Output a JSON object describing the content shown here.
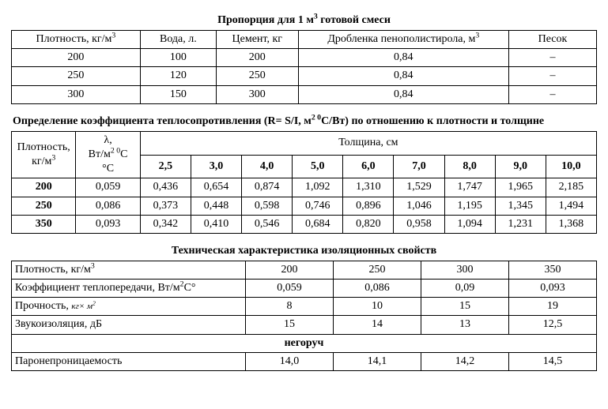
{
  "table1": {
    "title_prefix": "Пропорция для 1 м",
    "title_sup": "3",
    "title_suffix": " готовой смеси",
    "headers": {
      "density_prefix": "Плотность, кг/м",
      "density_sup": "3",
      "water": "Вода, л.",
      "cement": "Цемент, кг",
      "crumb_prefix": "Дробленка пенополистирола, м",
      "crumb_sup": "3",
      "sand": "Песок"
    },
    "rows": [
      {
        "density": "200",
        "water": "100",
        "cement": "200",
        "crumb": "0,84",
        "sand": "–"
      },
      {
        "density": "250",
        "water": "120",
        "cement": "250",
        "crumb": "0,84",
        "sand": "–"
      },
      {
        "density": "300",
        "water": "150",
        "cement": "300",
        "crumb": "0,84",
        "sand": "–"
      }
    ],
    "col_widths": [
      "22%",
      "13%",
      "14%",
      "36%",
      "15%"
    ]
  },
  "table2": {
    "title_prefix": "Определение коэффициента теплосопротивления (R= S/I, м",
    "title_mid_sup1": "2 0",
    "title_mid": "C/Вт) по отношению к плотности и толщине",
    "headers": {
      "density_prefix": "Плотность,",
      "density_line2_prefix": "кг/м",
      "density_sup": "3",
      "lambda_sym": "λ,",
      "lambda_line2_prefix": "Вт/м",
      "lambda_sup1": "2 0",
      "lambda_line2_suffix": "C",
      "lambda_line3": "°C",
      "thickness": "Толщина, см",
      "th_cols": [
        "2,5",
        "3,0",
        "4,0",
        "5,0",
        "6,0",
        "7,0",
        "8,0",
        "9,0",
        "10,0"
      ]
    },
    "rows": [
      {
        "density": "200",
        "lambda": "0,059",
        "vals": [
          "0,436",
          "0,654",
          "0,874",
          "1,092",
          "1,310",
          "1,529",
          "1,747",
          "1,965",
          "2,185"
        ]
      },
      {
        "density": "250",
        "lambda": "0,086",
        "vals": [
          "0,373",
          "0,448",
          "0,598",
          "0,746",
          "0,896",
          "1,046",
          "1,195",
          "1,345",
          "1,494"
        ]
      },
      {
        "density": "350",
        "lambda": "0,093",
        "vals": [
          "0,342",
          "0,410",
          "0,546",
          "0,684",
          "0,820",
          "0,958",
          "1,094",
          "1,231",
          "1,368"
        ]
      }
    ],
    "col_widths": [
      "11%",
      "11%",
      "8.67%",
      "8.67%",
      "8.67%",
      "8.67%",
      "8.67%",
      "8.67%",
      "8.67%",
      "8.67%",
      "8.67%"
    ]
  },
  "table3": {
    "title": "Техническая характеристика изоляционных свойств",
    "rows": {
      "density": {
        "label_prefix": "Плотность, кг/м",
        "label_sup": "3",
        "vals": [
          "200",
          "250",
          "300",
          "350"
        ]
      },
      "coef": {
        "label_prefix": "Коэффициент теплопередачи, Вт/м",
        "label_sup": "2",
        "label_suffix": "C°",
        "vals": [
          "0,059",
          "0,086",
          "0,09",
          "0,093"
        ]
      },
      "strength": {
        "label_prefix": "Прочность, ",
        "label_unit": "кг× м",
        "label_unit_sup": "2",
        "vals": [
          "8",
          "10",
          "15",
          "19"
        ]
      },
      "sound": {
        "label": "Звукоизоляция, дБ",
        "vals": [
          "15",
          "14",
          "13",
          "12,5"
        ]
      },
      "fire": {
        "label": "негоруч"
      },
      "vapor": {
        "label": "Паронепроницаемость",
        "vals": [
          "14,0",
          "14,1",
          "14,2",
          "14,5"
        ]
      }
    },
    "col_widths": [
      "40%",
      "15%",
      "15%",
      "15%",
      "15%"
    ]
  }
}
